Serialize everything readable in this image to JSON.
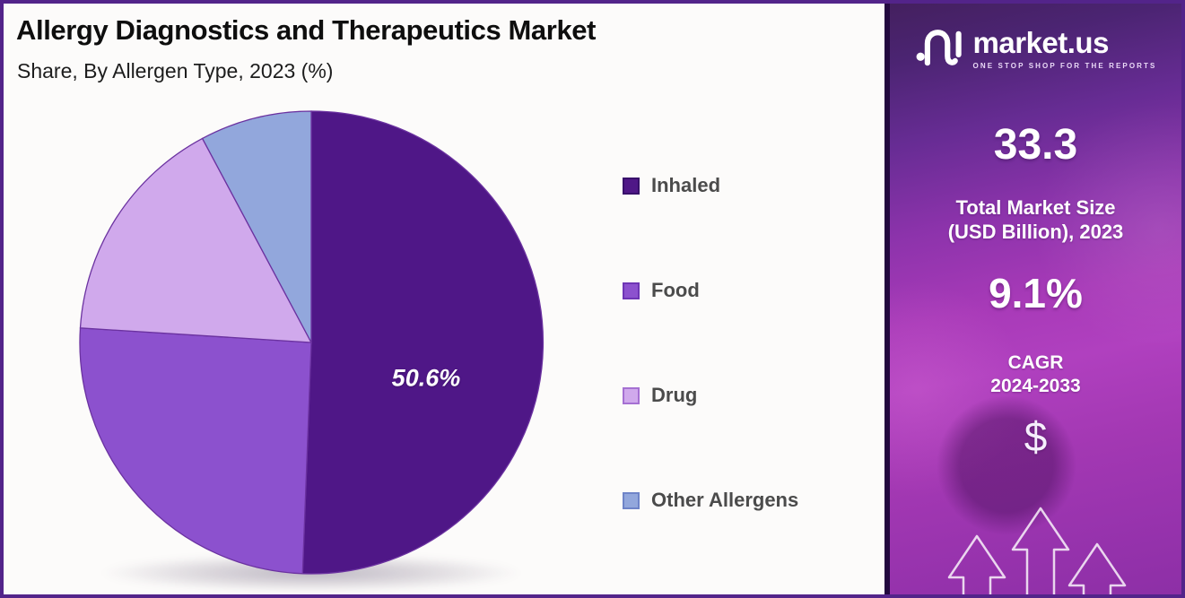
{
  "chart_data": {
    "type": "pie",
    "title": "Allergy Diagnostics and Therapeutics Market",
    "subtitle": "Share, By Allergen Type, 2023 (%)",
    "labels": [
      "Inhaled",
      "Food",
      "Drug",
      "Other Allergens"
    ],
    "values": [
      50.6,
      25.4,
      16.2,
      7.8
    ],
    "colors": [
      "#4f1787",
      "#8c51ce",
      "#d0a9ec",
      "#92a7dc"
    ],
    "swatch_border_colors": [
      "#38106b",
      "#6e35b5",
      "#a570d2",
      "#6e84c8"
    ],
    "slice_label": "50.6%",
    "labeled_slice": "Inhaled",
    "start_angle": "top",
    "direction": "clockwise",
    "legend_position": "right"
  },
  "sidebar": {
    "brand": "market.us",
    "tagline": "ONE STOP SHOP FOR THE REPORTS",
    "market_size_value": "33.3",
    "market_size_label_1": "Total Market Size",
    "market_size_label_2": "(USD Billion), 2023",
    "cagr_value": "9.1%",
    "cagr_label_1": "CAGR",
    "cagr_label_2": "2024-2033",
    "dollar_symbol": "$"
  },
  "colors": {
    "slice_stroke": "#6b32a0",
    "frame_border": "#53248a",
    "panel_border": "#23093f",
    "legend_text": "#4b4b4b",
    "title_text": "#0e0e0e"
  }
}
